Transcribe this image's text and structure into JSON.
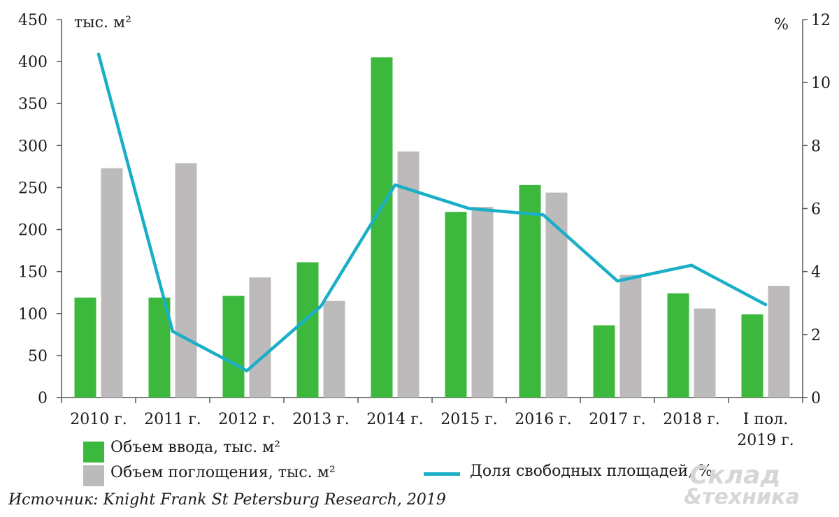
{
  "chart_data": {
    "type": "bar",
    "categories": [
      "2010 г.",
      "2011 г.",
      "2012 г.",
      "2013 г.",
      "2014 г.",
      "2015 г.",
      "2016 г.",
      "2017 г.",
      "2018 г.",
      "I пол.\n2019 г."
    ],
    "series": [
      {
        "name": "Объем ввода, тыс. м²",
        "type": "bar",
        "axis": "left",
        "color": "#3cb93c",
        "values": [
          119,
          119,
          121,
          161,
          405,
          221,
          253,
          86,
          124,
          99
        ]
      },
      {
        "name": "Объем поглощения, тыс. м²",
        "type": "bar",
        "axis": "left",
        "color": "#bdbabb",
        "values": [
          273,
          279,
          143,
          115,
          293,
          227,
          244,
          146,
          106,
          133
        ]
      },
      {
        "name": "Доля свободных площадей, %",
        "type": "line",
        "axis": "right",
        "color": "#1aafc7",
        "values": [
          10.9,
          2.1,
          0.85,
          2.9,
          6.75,
          6.0,
          5.8,
          3.7,
          4.2,
          2.95
        ]
      }
    ],
    "ylim_left": [
      0,
      450
    ],
    "yticks_left": [
      0,
      50,
      100,
      150,
      200,
      250,
      300,
      350,
      400,
      450
    ],
    "ylabel_left": "тыс. м²",
    "ylim_right": [
      0,
      12
    ],
    "yticks_right": [
      0,
      2,
      4,
      6,
      8,
      10,
      12
    ],
    "ylabel_right": "%",
    "grid": false,
    "legend_position": "bottom"
  },
  "legend": {
    "input_label": "Объем ввода, тыс. м²",
    "absorption_label": "Объем поглощения, тыс. м²",
    "vacancy_label": "Доля свободных площадей, %"
  },
  "source": "Источник: Knight Frank St Petersburg Research, 2019",
  "watermark": {
    "line1": "Склад",
    "line2": "&техника"
  },
  "colors": {
    "green": "#3cb93c",
    "gray": "#bdbabb",
    "line": "#1aafc7",
    "axis": "#555555"
  }
}
